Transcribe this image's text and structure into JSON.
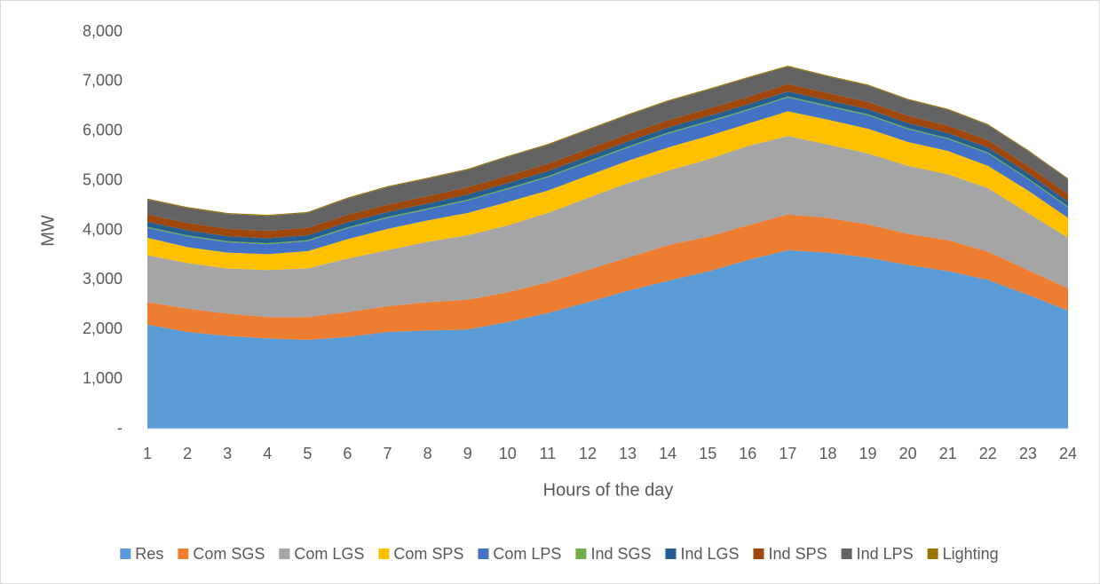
{
  "chart_data": {
    "type": "stacked_area",
    "xlabel": "Hours of the day",
    "ylabel": "MW",
    "x": [
      1,
      2,
      3,
      4,
      5,
      6,
      7,
      8,
      9,
      10,
      11,
      12,
      13,
      14,
      15,
      16,
      17,
      18,
      19,
      20,
      21,
      22,
      23,
      24
    ],
    "xlim": [
      1,
      24
    ],
    "ylim": [
      0,
      8000
    ],
    "yticks": [
      {
        "value": 0,
        "label": "-"
      },
      {
        "value": 1000,
        "label": "1,000"
      },
      {
        "value": 2000,
        "label": "2,000"
      },
      {
        "value": 3000,
        "label": "3,000"
      },
      {
        "value": 4000,
        "label": "4,000"
      },
      {
        "value": 5000,
        "label": "5,000"
      },
      {
        "value": 6000,
        "label": "6,000"
      },
      {
        "value": 7000,
        "label": "7,000"
      },
      {
        "value": 8000,
        "label": "8,000"
      }
    ],
    "grid": false,
    "legend": "bottom",
    "series": [
      {
        "name": "Res",
        "color": "#5b9bd5",
        "values": [
          2100,
          1950,
          1870,
          1820,
          1790,
          1850,
          1950,
          1980,
          2000,
          2150,
          2330,
          2550,
          2780,
          2980,
          3170,
          3400,
          3600,
          3550,
          3450,
          3300,
          3180,
          3000,
          2700,
          2380
        ]
      },
      {
        "name": "Com SGS",
        "color": "#ed7d31",
        "values": [
          450,
          470,
          450,
          430,
          460,
          500,
          520,
          570,
          600,
          600,
          620,
          650,
          670,
          720,
          700,
          700,
          720,
          700,
          670,
          630,
          620,
          570,
          500,
          450
        ]
      },
      {
        "name": "Com LGS",
        "color": "#a5a5a5",
        "values": [
          950,
          920,
          910,
          950,
          980,
          1080,
          1130,
          1220,
          1300,
          1350,
          1400,
          1450,
          1500,
          1500,
          1560,
          1600,
          1580,
          1480,
          1430,
          1370,
          1330,
          1280,
          1150,
          1020
        ]
      },
      {
        "name": "Com SPS",
        "color": "#ffc000",
        "values": [
          350,
          320,
          320,
          320,
          350,
          390,
          430,
          430,
          450,
          470,
          450,
          450,
          450,
          470,
          470,
          450,
          500,
          500,
          500,
          480,
          470,
          450,
          450,
          400
        ]
      },
      {
        "name": "Com LPS",
        "color": "#4472c4",
        "values": [
          200,
          220,
          210,
          200,
          200,
          220,
          220,
          220,
          250,
          260,
          270,
          270,
          270,
          280,
          280,
          270,
          280,
          270,
          270,
          260,
          240,
          250,
          230,
          210
        ]
      },
      {
        "name": "Ind SGS",
        "color": "#70ad47",
        "values": [
          20,
          20,
          20,
          20,
          20,
          20,
          20,
          20,
          20,
          20,
          20,
          20,
          20,
          20,
          20,
          20,
          20,
          20,
          20,
          20,
          20,
          20,
          20,
          20
        ]
      },
      {
        "name": "Ind LGS",
        "color": "#255e91",
        "values": [
          100,
          100,
          100,
          100,
          100,
          100,
          100,
          100,
          100,
          100,
          100,
          100,
          100,
          100,
          100,
          100,
          100,
          100,
          100,
          100,
          100,
          100,
          100,
          100
        ]
      },
      {
        "name": "Ind SPS",
        "color": "#9e480e",
        "values": [
          150,
          150,
          150,
          150,
          150,
          150,
          150,
          150,
          150,
          150,
          150,
          150,
          150,
          150,
          150,
          150,
          150,
          150,
          150,
          150,
          150,
          150,
          150,
          150
        ]
      },
      {
        "name": "Ind LPS",
        "color": "#636363",
        "values": [
          300,
          300,
          300,
          300,
          300,
          330,
          350,
          350,
          350,
          380,
          380,
          380,
          380,
          380,
          380,
          380,
          350,
          330,
          330,
          320,
          320,
          300,
          300,
          300
        ]
      },
      {
        "name": "Lighting",
        "color": "#997300",
        "values": [
          20,
          20,
          20,
          20,
          20,
          20,
          20,
          20,
          20,
          20,
          20,
          20,
          20,
          20,
          20,
          20,
          20,
          20,
          20,
          20,
          20,
          20,
          20,
          20
        ]
      }
    ]
  }
}
